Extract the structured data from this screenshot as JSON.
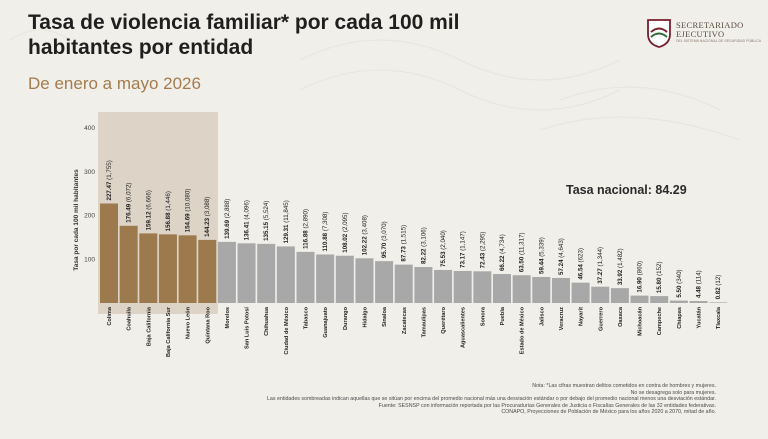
{
  "header": {
    "title": "Tasa de violencia familiar* por cada 100 mil habitantes por entidad",
    "subtitle": "De enero a mayo 2026"
  },
  "logo": {
    "line1": "SECRETARIADO",
    "line2": "EJECUTIVO",
    "line3": "DEL SISTEMA NACIONAL DE SEGURIDAD PÚBLICA"
  },
  "national_rate_label": "Tasa nacional: 84.29",
  "notes": [
    "Nota: *Las cifras muestran delitos cometidos en contra de hombres y mujeres.",
    "No se desagrega solo para mujeres.",
    "Las entidades sombreadas indican aquellas que se sitúan por encima del promedio nacional más una desviación estándar o por debajo del promedio nacional menos una desviación estándar.",
    "Fuente: SESNSP con información reportada por las Procuradurías Generales de Justicia o Fiscalías Generales de las 32 entidades federativas.",
    "CONAPO, Proyecciones de Población de México para los años 2020 a 2070, mitad de año."
  ],
  "colors": {
    "highlight_bar": "#9c7a4e",
    "normal_bar": "#a8a8a8",
    "highlight_band": "#ddd4c7",
    "subtitle": "#a57b4d"
  },
  "chart_data": {
    "type": "bar",
    "ylabel": "Tasa por cada 100 mil habitantes",
    "ylim": [
      0,
      400
    ],
    "yticks": [
      100,
      200,
      300,
      400
    ],
    "national_rate": 84.29,
    "categories": [
      "Colima",
      "Coahuila",
      "Baja California",
      "Baja California Sur",
      "Nuevo León",
      "Quintana Roo",
      "Morelos",
      "San Luis Potosí",
      "Chihuahua",
      "Ciudad de México",
      "Tabasco",
      "Guanajuato",
      "Durango",
      "Hidalgo",
      "Sinaloa",
      "Zacatecas",
      "Tamaulipas",
      "Querétaro",
      "Aguascalientes",
      "Sonora",
      "Puebla",
      "Estado de México",
      "Jalisco",
      "Veracruz",
      "Nayarit",
      "Guerrero",
      "Oaxaca",
      "Michoacán",
      "Campeche",
      "Chiapas",
      "Yucatán",
      "Tlaxcala"
    ],
    "values": [
      227.47,
      176.49,
      159.12,
      156.88,
      154.69,
      144.23,
      139.69,
      136.41,
      135.15,
      129.31,
      116.88,
      110.88,
      108.02,
      102.22,
      95.7,
      87.73,
      82.22,
      75.53,
      73.17,
      72.43,
      66.22,
      63.5,
      59.44,
      57.24,
      46.54,
      37.27,
      33.92,
      16.9,
      15.8,
      5.5,
      4.48,
      0.82
    ],
    "counts": [
      "(1,755)",
      "(6,072)",
      "(6,666)",
      "(1,446)",
      "(10,080)",
      "(3,088)",
      "(2,888)",
      "(4,096)",
      "(5,524)",
      "(11,845)",
      "(2,890)",
      "(7,308)",
      "(2,095)",
      "(3,408)",
      "(3,070)",
      "(1,515)",
      "(3,106)",
      "(2,040)",
      "(1,147)",
      "(2,295)",
      "(4,734)",
      "(11,317)",
      "(5,339)",
      "(4,643)",
      "(623)",
      "(1,344)",
      "(1,482)",
      "(860)",
      "(152)",
      "(340)",
      "(114)",
      "(12)"
    ],
    "value_labels": [
      "227.47",
      "176.49",
      "159.12",
      "156.88",
      "154.69",
      "144.23",
      "139.69",
      "136.41",
      "135.15",
      "129.31",
      "116.88",
      "110.88",
      "108.02",
      "102.22",
      "95.70",
      "87.73",
      "82.22",
      "75.53",
      "73.17",
      "72.43",
      "66.22",
      "63.50",
      "59.44",
      "57.24",
      "46.54",
      "37.27",
      "33.92",
      "16.90",
      "15.80",
      "5.50",
      "4.48",
      "0.82"
    ],
    "highlighted": [
      true,
      true,
      true,
      true,
      true,
      true,
      false,
      false,
      false,
      false,
      false,
      false,
      false,
      false,
      false,
      false,
      false,
      false,
      false,
      false,
      false,
      false,
      false,
      false,
      false,
      false,
      false,
      false,
      false,
      false,
      false,
      false
    ]
  }
}
